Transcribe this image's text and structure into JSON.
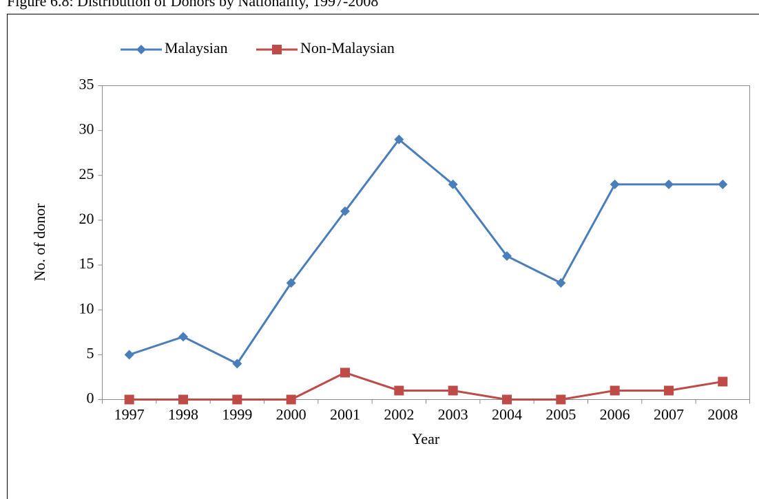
{
  "chart_data": {
    "type": "line",
    "title": "Figure 6.8: Distribution of Donors by Nationality, 1997-2008",
    "x_label": "Year",
    "y_label": "No. of donor",
    "categories": [
      "1997",
      "1998",
      "1999",
      "2000",
      "2001",
      "2002",
      "2003",
      "2004",
      "2005",
      "2006",
      "2007",
      "2008"
    ],
    "series": [
      {
        "name": "Malaysian",
        "color": "#4a7ebb",
        "marker": "diamond",
        "values": [
          5,
          7,
          4,
          13,
          21,
          29,
          24,
          16,
          13,
          24,
          24,
          24
        ]
      },
      {
        "name": "Non-Malaysian",
        "color": "#be4b48",
        "marker": "square",
        "values": [
          0,
          0,
          0,
          0,
          3,
          1,
          1,
          0,
          0,
          1,
          1,
          2
        ]
      }
    ],
    "ylim": [
      0,
      35
    ],
    "yticks": [
      0,
      5,
      10,
      15,
      20,
      25,
      30,
      35
    ],
    "grid": false,
    "legend": "top"
  }
}
